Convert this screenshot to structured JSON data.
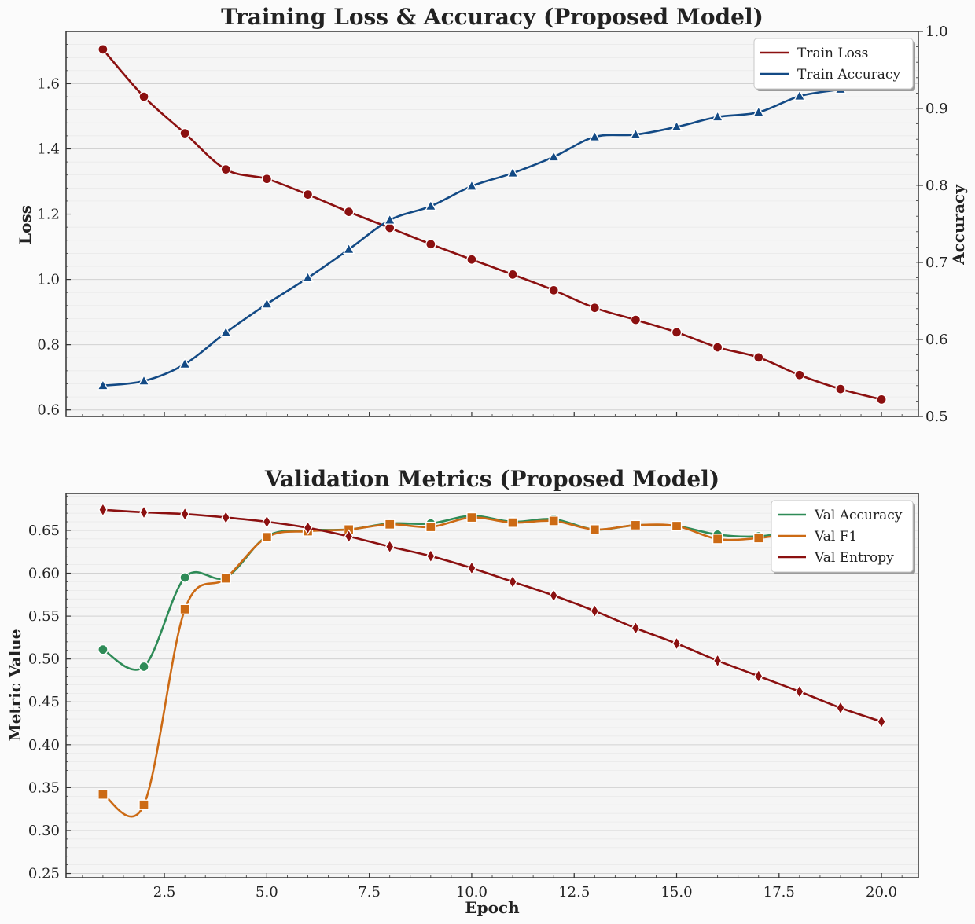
{
  "chart_data": [
    {
      "type": "line",
      "title": "Training Loss & Accuracy (Proposed Model)",
      "xlabel": "",
      "ylabel": "Loss",
      "y2label": "Accuracy",
      "xlim": [
        0.1,
        20.9
      ],
      "ylim": [
        0.58,
        1.76
      ],
      "y2lim": [
        0.5,
        1.0
      ],
      "yticks": [
        "0.6",
        "0.8",
        "1.0",
        "1.2",
        "1.4",
        "1.6"
      ],
      "y2ticks": [
        "0.5",
        "0.6",
        "0.7",
        "0.8",
        "0.9",
        "1.0"
      ],
      "grid": true,
      "legend_position": "top-right",
      "x": [
        1,
        2,
        3,
        4,
        5,
        6,
        7,
        8,
        9,
        10,
        11,
        12,
        13,
        14,
        15,
        16,
        17,
        18,
        19,
        20
      ],
      "series": [
        {
          "name": "Train Loss",
          "axis": "left",
          "color": "#8b1010",
          "marker": "circle",
          "values": [
            1.705,
            1.56,
            1.448,
            1.337,
            1.308,
            1.26,
            1.207,
            1.158,
            1.108,
            1.061,
            1.015,
            0.967,
            0.913,
            0.876,
            0.838,
            0.792,
            0.761,
            0.707,
            0.664,
            0.632
          ]
        },
        {
          "name": "Train Accuracy",
          "axis": "right",
          "color": "#134a85",
          "marker": "triangle",
          "values": [
            0.54,
            0.546,
            0.568,
            0.609,
            0.646,
            0.68,
            0.717,
            0.755,
            0.773,
            0.799,
            0.816,
            0.837,
            0.863,
            0.866,
            0.876,
            0.889,
            0.895,
            0.916,
            0.925,
            0.935
          ]
        }
      ]
    },
    {
      "type": "line",
      "title": "Validation Metrics (Proposed Model)",
      "xlabel": "Epoch",
      "ylabel": "Metric Value",
      "xlim": [
        0.1,
        20.9
      ],
      "ylim": [
        0.245,
        0.693
      ],
      "xticks": [
        "2.5",
        "5.0",
        "7.5",
        "10.0",
        "12.5",
        "15.0",
        "17.5",
        "20.0"
      ],
      "yticks": [
        "0.25",
        "0.30",
        "0.35",
        "0.40",
        "0.45",
        "0.50",
        "0.55",
        "0.60",
        "0.65"
      ],
      "grid": true,
      "legend_position": "top-right",
      "x": [
        1,
        2,
        3,
        4,
        5,
        6,
        7,
        8,
        9,
        10,
        11,
        12,
        13,
        14,
        15,
        16,
        17,
        18,
        19,
        20
      ],
      "series": [
        {
          "name": "Val Accuracy",
          "color": "#2e8b57",
          "marker": "circle",
          "values": [
            0.511,
            0.491,
            0.595,
            0.595,
            0.643,
            0.65,
            0.651,
            0.658,
            0.658,
            0.667,
            0.66,
            0.663,
            0.651,
            0.656,
            0.655,
            0.645,
            0.643,
            0.65,
            0.655,
            0.66
          ]
        },
        {
          "name": "Val F1",
          "color": "#cc6a14",
          "marker": "square",
          "values": [
            0.342,
            0.33,
            0.558,
            0.594,
            0.642,
            0.649,
            0.651,
            0.657,
            0.654,
            0.665,
            0.659,
            0.661,
            0.651,
            0.656,
            0.655,
            0.64,
            0.641,
            0.648,
            0.653,
            0.658
          ]
        },
        {
          "name": "Val Entropy",
          "color": "#8b1010",
          "marker": "diamond",
          "values": [
            0.674,
            0.671,
            0.669,
            0.665,
            0.66,
            0.653,
            0.643,
            0.631,
            0.62,
            0.606,
            0.59,
            0.574,
            0.556,
            0.536,
            0.518,
            0.498,
            0.48,
            0.462,
            0.443,
            0.427
          ]
        }
      ]
    }
  ]
}
